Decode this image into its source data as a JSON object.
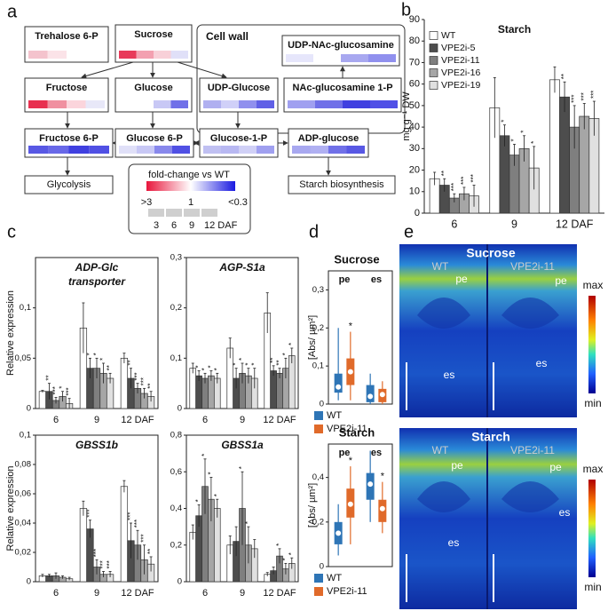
{
  "panel_labels": [
    "a",
    "b",
    "c",
    "d",
    "e"
  ],
  "diagram": {
    "cell_wall": "Cell wall",
    "nodes": [
      {
        "label": "Trehalose 6-P",
        "colors": [
          "#f4c3cd",
          "#fbe3e8",
          "#ffffff",
          "#ffffff"
        ]
      },
      {
        "label": "Sucrose",
        "colors": [
          "#e83a5a",
          "#f3a0b0",
          "#f8d0d8",
          "#e0e0f8"
        ]
      },
      {
        "label": "UDP-NAc-glucosamine",
        "colors": [
          "#e6e6fb",
          "#ffffff",
          "#a8a8f0",
          "#9090ee"
        ]
      },
      {
        "label": "Fructose",
        "colors": [
          "#e83050",
          "#f090a0",
          "#fbd5dc",
          "#e8e8f8"
        ]
      },
      {
        "label": "Glucose",
        "colors": [
          "#ffffff",
          "#ffffff",
          "#c8c8f5",
          "#7070e8"
        ]
      },
      {
        "label": "UDP-Glucose",
        "colors": [
          "#b0b0f0",
          "#d0d0f8",
          "#9090ee",
          "#6060e6"
        ]
      },
      {
        "label": "NAc-glucosamine 1-P",
        "colors": [
          "#a0a0f0",
          "#7070e8",
          "#4040e0",
          "#5050e6"
        ]
      },
      {
        "label": "Fructose 6-P",
        "colors": [
          "#5858e4",
          "#6868e8",
          "#4040e0",
          "#5050e4"
        ]
      },
      {
        "label": "Glucose 6-P",
        "colors": [
          "#e0e0f8",
          "#c8c8f5",
          "#8888ec",
          "#5050e4"
        ]
      },
      {
        "label": "Glucose-1-P",
        "colors": [
          "#c0c0f2",
          "#b8b8f2",
          "#d0d0f6",
          "#a0a0f0"
        ]
      },
      {
        "label": "ADP-glucose",
        "colors": [
          "#a8a8f0",
          "#b0b0f2",
          "#7070e8",
          "#5858e4"
        ]
      },
      {
        "label": "Glycolysis"
      },
      {
        "label": "Starch biosynthesis"
      }
    ],
    "legend": {
      "title": "fold-change vs WT",
      "scale_colors": [
        "#e8163c",
        "#ffffff",
        "#1a1ae0"
      ],
      "scale_labels": [
        ">3",
        "1",
        "<0.3"
      ],
      "days": [
        "3",
        "6",
        "9",
        "12 DAF"
      ]
    }
  },
  "chart_data": [
    {
      "type": "bar",
      "title": "Starch",
      "ylabel": "mg g⁻¹ DW",
      "categories": [
        "6",
        "9",
        "12 DAF"
      ],
      "ylim": [
        0,
        90
      ],
      "yticks": [
        0,
        10,
        20,
        30,
        40,
        50,
        60,
        70,
        80,
        90
      ],
      "legend": "upper left",
      "series": [
        {
          "name": "WT",
          "color": "#ffffff",
          "values": [
            16,
            49,
            62
          ],
          "errors": [
            3,
            14,
            6
          ]
        },
        {
          "name": "VPE2i-5",
          "color": "#4d4d4d",
          "values": [
            13,
            36,
            54
          ],
          "errors": [
            3,
            5,
            7
          ],
          "sig": [
            "**",
            "*",
            "**"
          ]
        },
        {
          "name": "VPE2i-11",
          "color": "#7f7f7f",
          "values": [
            7,
            27,
            40
          ],
          "errors": [
            2,
            5,
            10
          ],
          "sig": [
            "***",
            "*",
            "***"
          ]
        },
        {
          "name": "VPE2i-16",
          "color": "#a6a6a6",
          "values": [
            9,
            30,
            45
          ],
          "errors": [
            3,
            6,
            6
          ],
          "sig": [
            "***",
            "*",
            "***"
          ]
        },
        {
          "name": "VPE2i-19",
          "color": "#e0e0e0",
          "values": [
            8,
            21,
            44
          ],
          "errors": [
            5,
            10,
            8
          ],
          "sig": [
            "***",
            "*",
            "***"
          ]
        }
      ]
    },
    {
      "type": "bar",
      "title": [
        "ADP-Glc",
        "transporter"
      ],
      "ylabel": "Relative expression",
      "categories": [
        "6",
        "9",
        "12 DAF"
      ],
      "ylim": [
        0,
        0.15
      ],
      "yticks": [
        0,
        {
          "value": 0.05,
          "label": "0,05"
        },
        {
          "value": 0.1,
          "label": "0,1"
        }
      ],
      "series": [
        {
          "color": "#ffffff",
          "values": [
            0.017,
            0.08,
            0.05
          ],
          "errors": [
            0.001,
            0.025,
            0.005
          ]
        },
        {
          "color": "#4d4d4d",
          "values": [
            0.017,
            0.04,
            0.03
          ],
          "errors": [
            0.008,
            0.01,
            0.01
          ],
          "sig": [
            "**",
            "*",
            "**"
          ]
        },
        {
          "color": "#7f7f7f",
          "values": [
            0.008,
            0.04,
            0.02
          ],
          "errors": [
            0.003,
            0.01,
            0.005
          ],
          "sig": [
            "***",
            "*",
            "***"
          ]
        },
        {
          "color": "#a6a6a6",
          "values": [
            0.012,
            0.035,
            0.015
          ],
          "errors": [
            0.005,
            0.01,
            0.005
          ],
          "sig": [
            "*",
            "*",
            "***"
          ]
        },
        {
          "color": "#e0e0e0",
          "values": [
            0.005,
            0.03,
            0.012
          ],
          "errors": [
            0.005,
            0.005,
            0.005
          ],
          "sig": [
            "***",
            "**",
            "**"
          ]
        }
      ]
    },
    {
      "type": "bar",
      "title": "AGP-S1a",
      "categories": [
        "6",
        "9",
        "12 DAF"
      ],
      "ylim": [
        0,
        0.3
      ],
      "yticks": [
        0,
        {
          "value": 0.1,
          "label": "0,1"
        },
        {
          "value": 0.2,
          "label": "0,2"
        },
        {
          "value": 0.3,
          "label": "0,3"
        }
      ],
      "series": [
        {
          "color": "#ffffff",
          "values": [
            0.08,
            0.12,
            0.19
          ],
          "errors": [
            0.01,
            0.02,
            0.04
          ]
        },
        {
          "color": "#4d4d4d",
          "values": [
            0.065,
            0.06,
            0.075
          ],
          "errors": [
            0.01,
            0.02,
            0.01
          ],
          "sig": [
            "*",
            "*",
            "**"
          ]
        },
        {
          "color": "#7f7f7f",
          "values": [
            0.06,
            0.07,
            0.07
          ],
          "errors": [
            0.01,
            0.02,
            0.01
          ],
          "sig": [
            "*",
            "*",
            "**"
          ]
        },
        {
          "color": "#a6a6a6",
          "values": [
            0.065,
            0.065,
            0.08
          ],
          "errors": [
            0.01,
            0.015,
            0.02
          ],
          "sig": [
            "*",
            "*",
            "*"
          ]
        },
        {
          "color": "#e0e0e0",
          "values": [
            0.06,
            0.06,
            0.105
          ],
          "errors": [
            0.01,
            0.02,
            0.015
          ],
          "sig": [
            "*",
            "*",
            "*"
          ]
        }
      ]
    },
    {
      "type": "bar",
      "title": "GBSS1b",
      "ylabel": "Relative expression",
      "categories": [
        "6",
        "9",
        "12 DAF"
      ],
      "ylim": [
        0,
        0.1
      ],
      "yticks": [
        0,
        {
          "value": 0.02,
          "label": "0,02"
        },
        {
          "value": 0.04,
          "label": "0,04"
        },
        {
          "value": 0.06,
          "label": "0,06"
        },
        {
          "value": 0.08,
          "label": "0,08"
        },
        {
          "value": 0.1,
          "label": "0,1"
        }
      ],
      "series": [
        {
          "color": "#ffffff",
          "values": [
            0.004,
            0.05,
            0.065
          ],
          "errors": [
            0.001,
            0.005,
            0.004
          ]
        },
        {
          "color": "#4d4d4d",
          "values": [
            0.004,
            0.036,
            0.028
          ],
          "errors": [
            0.001,
            0.006,
            0.012
          ],
          "sig": [
            null,
            "***",
            "***"
          ]
        },
        {
          "color": "#7f7f7f",
          "values": [
            0.004,
            0.01,
            0.025
          ],
          "errors": [
            0.002,
            0.005,
            0.01
          ],
          "sig": [
            null,
            "***",
            "***"
          ]
        },
        {
          "color": "#a6a6a6",
          "values": [
            0.003,
            0.005,
            0.015
          ],
          "errors": [
            0.001,
            0.002,
            0.01
          ],
          "sig": [
            null,
            "***",
            "***"
          ]
        },
        {
          "color": "#e0e0e0",
          "values": [
            0.002,
            0.005,
            0.012
          ],
          "errors": [
            0.001,
            0.002,
            0.005
          ],
          "sig": [
            null,
            "***",
            "**"
          ]
        }
      ]
    },
    {
      "type": "bar",
      "title": "GBSS1a",
      "categories": [
        "6",
        "9",
        "12 DAF"
      ],
      "ylim": [
        0,
        0.8
      ],
      "yticks": [
        0,
        {
          "value": 0.2,
          "label": "0,2"
        },
        {
          "value": 0.4,
          "label": "0,4"
        },
        {
          "value": 0.6,
          "label": "0,6"
        },
        {
          "value": 0.8,
          "label": "0,8"
        }
      ],
      "series": [
        {
          "color": "#ffffff",
          "values": [
            0.27,
            0.2,
            0.04
          ],
          "errors": [
            0.04,
            0.05,
            0.01
          ]
        },
        {
          "color": "#4d4d4d",
          "values": [
            0.36,
            0.22,
            0.06
          ],
          "errors": [
            0.06,
            0.08,
            0.02
          ],
          "sig": [
            "*",
            null,
            null
          ]
        },
        {
          "color": "#7f7f7f",
          "values": [
            0.52,
            0.4,
            0.14
          ],
          "errors": [
            0.15,
            0.2,
            0.04
          ],
          "sig": [
            "*",
            "*",
            "*"
          ]
        },
        {
          "color": "#a6a6a6",
          "values": [
            0.45,
            0.2,
            0.07
          ],
          "errors": [
            0.12,
            0.1,
            0.03
          ],
          "sig": [
            "*",
            "*",
            "*"
          ]
        },
        {
          "color": "#e0e0e0",
          "values": [
            0.4,
            0.18,
            0.1
          ],
          "errors": [
            0.05,
            0.05,
            0.03
          ],
          "sig": [
            "*",
            null,
            "*"
          ]
        }
      ]
    },
    {
      "type": "box",
      "title": "Sucrose",
      "ylabel": "[Abs/ µm²]",
      "categories": [
        "pe",
        "es"
      ],
      "ylim": [
        0,
        0.35
      ],
      "yticks": [
        0,
        {
          "value": 0.1,
          "label": "0,1"
        },
        {
          "value": 0.2,
          "label": "0,2"
        },
        {
          "value": 0.3,
          "label": "0,3"
        }
      ],
      "series": [
        {
          "name": "WT",
          "color": "#2e75b6",
          "values": [
            [
              0.01,
              0.03,
              0.045,
              0.08,
              0.2
            ],
            [
              0,
              0.005,
              0.02,
              0.05,
              0.08
            ]
          ]
        },
        {
          "name": "VPE2i-11",
          "color": "#e06a2a",
          "values": [
            [
              0.01,
              0.05,
              0.085,
              0.12,
              0.19
            ],
            [
              0,
              0.005,
              0.025,
              0.04,
              0.06
            ]
          ],
          "sig": [
            "*",
            null
          ]
        }
      ]
    },
    {
      "type": "box",
      "title": "Starch",
      "ylabel": "[Abs/ µm²]",
      "categories": [
        "pe",
        "es"
      ],
      "ylim": [
        0,
        0.55
      ],
      "yticks": [
        0,
        {
          "value": 0.2,
          "label": "0,2"
        },
        {
          "value": 0.4,
          "label": "0,4"
        }
      ],
      "series": [
        {
          "name": "WT",
          "color": "#2e75b6",
          "values": [
            [
              0.05,
              0.1,
              0.15,
              0.2,
              0.28
            ],
            [
              0.2,
              0.3,
              0.37,
              0.42,
              0.52
            ]
          ]
        },
        {
          "name": "VPE2i-11",
          "color": "#e06a2a",
          "values": [
            [
              0.1,
              0.22,
              0.28,
              0.35,
              0.45
            ],
            [
              0.15,
              0.2,
              0.26,
              0.3,
              0.38
            ]
          ],
          "sig": [
            "*",
            "*"
          ]
        }
      ]
    }
  ],
  "images": [
    {
      "title": "Sucrose",
      "left": "WT",
      "right": "VPE2i-11",
      "regions": [
        "pe",
        "pe",
        "es",
        "es"
      ],
      "max": "max",
      "min": "min"
    },
    {
      "title": "Starch",
      "left": "WT",
      "right": "VPE2i-11",
      "regions": [
        "pe",
        "pe",
        "es",
        "es"
      ],
      "max": "max",
      "min": "min"
    }
  ]
}
